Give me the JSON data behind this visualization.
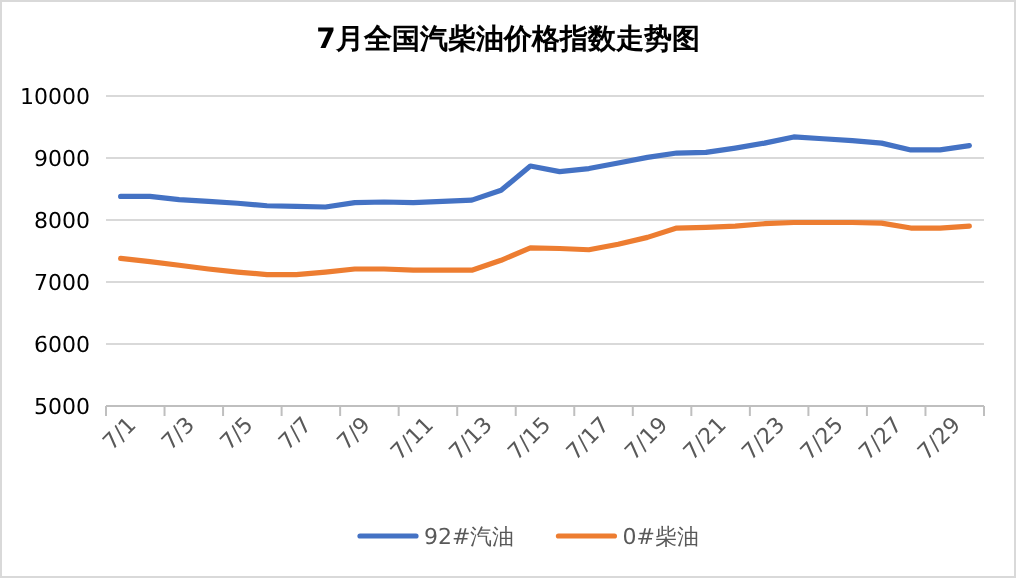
{
  "chart_data": {
    "type": "line",
    "title": "7月全国汽柴油价格指数走势图",
    "categories": [
      "7/1",
      null,
      "7/3",
      null,
      "7/5",
      null,
      "7/7",
      null,
      "7/9",
      null,
      "7/11",
      null,
      "7/13",
      null,
      "7/15",
      null,
      "7/17",
      null,
      "7/19",
      null,
      "7/21",
      null,
      "7/23",
      null,
      "7/25",
      null,
      "7/27",
      null,
      "7/29",
      null
    ],
    "series": [
      {
        "name": "92#汽油",
        "color": "#4472c4",
        "values": [
          8380,
          8380,
          8330,
          8300,
          8270,
          8230,
          8220,
          8210,
          8280,
          8290,
          8280,
          8300,
          8320,
          8480,
          8870,
          8780,
          8830,
          8920,
          9010,
          9080,
          9090,
          9160,
          9240,
          9340,
          9310,
          9280,
          9240,
          9130,
          9130,
          9200
        ]
      },
      {
        "name": "0#柴油",
        "color": "#ed7d31",
        "values": [
          7380,
          7330,
          7270,
          7210,
          7160,
          7120,
          7120,
          7160,
          7210,
          7210,
          7190,
          7190,
          7190,
          7350,
          7550,
          7540,
          7520,
          7610,
          7720,
          7870,
          7880,
          7900,
          7940,
          7960,
          7960,
          7960,
          7950,
          7870,
          7870,
          7900
        ]
      }
    ],
    "ylim": [
      5000,
      10000
    ],
    "yticks": [
      5000,
      6000,
      7000,
      8000,
      9000,
      10000
    ],
    "grid": "y",
    "legend": "bottom",
    "marker": "none",
    "line_style": "solid"
  }
}
